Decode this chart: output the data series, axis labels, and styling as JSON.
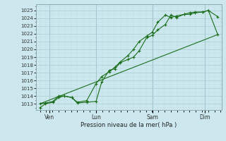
{
  "background_color": "#cce8ee",
  "grid_color_major": "#aaccd4",
  "grid_color_minor": "#bbdde4",
  "line_color": "#1a6e1a",
  "marker_color": "#1a6e1a",
  "xlabel_text": "Pression niveau de la mer( hPa )",
  "ylim": [
    1012.2,
    1025.8
  ],
  "yticks": [
    1013,
    1014,
    1015,
    1016,
    1017,
    1018,
    1019,
    1020,
    1021,
    1022,
    1023,
    1024,
    1025
  ],
  "xlim": [
    -0.2,
    9.7
  ],
  "xtick_labels": [
    "Ven",
    "Lun",
    "Sam",
    "Dim"
  ],
  "xtick_positions": [
    0.5,
    3.0,
    6.0,
    8.8
  ],
  "vline_positions": [
    0.5,
    3.0,
    6.0,
    8.8
  ],
  "line1": {
    "x": [
      0.0,
      0.3,
      0.7,
      1.0,
      1.3,
      1.7,
      2.0,
      2.5,
      3.0,
      3.3,
      3.7,
      4.0,
      4.3,
      4.7,
      5.0,
      5.3,
      5.7,
      6.0,
      6.3,
      6.7,
      7.0,
      7.3,
      7.7,
      8.0,
      8.3,
      8.7,
      9.0,
      9.5
    ],
    "y": [
      1012.5,
      1013.0,
      1013.2,
      1013.8,
      1014.0,
      1013.8,
      1013.1,
      1013.2,
      1013.3,
      1015.8,
      1017.3,
      1017.5,
      1018.3,
      1018.7,
      1019.0,
      1019.8,
      1021.5,
      1021.8,
      1022.5,
      1023.2,
      1024.4,
      1024.1,
      1024.5,
      1024.7,
      1024.8,
      1024.8,
      1025.0,
      1024.2
    ]
  },
  "line2": {
    "x": [
      0.0,
      0.3,
      0.7,
      1.0,
      1.3,
      1.7,
      2.0,
      2.5,
      3.0,
      3.3,
      3.7,
      4.0,
      4.3,
      4.7,
      5.0,
      5.3,
      5.7,
      6.0,
      6.3,
      6.7,
      7.0,
      7.3,
      7.7,
      8.0,
      8.3,
      8.7,
      9.0,
      9.5
    ],
    "y": [
      1013.0,
      1013.1,
      1013.3,
      1014.0,
      1014.0,
      1013.8,
      1013.2,
      1013.4,
      1015.6,
      1016.5,
      1017.1,
      1017.7,
      1018.4,
      1019.2,
      1020.0,
      1021.0,
      1021.7,
      1022.2,
      1023.5,
      1024.4,
      1024.1,
      1024.3,
      1024.5,
      1024.5,
      1024.7,
      1024.8,
      1025.0,
      1021.9
    ]
  },
  "line3": {
    "x": [
      0.0,
      9.5
    ],
    "y": [
      1013.0,
      1021.9
    ]
  }
}
